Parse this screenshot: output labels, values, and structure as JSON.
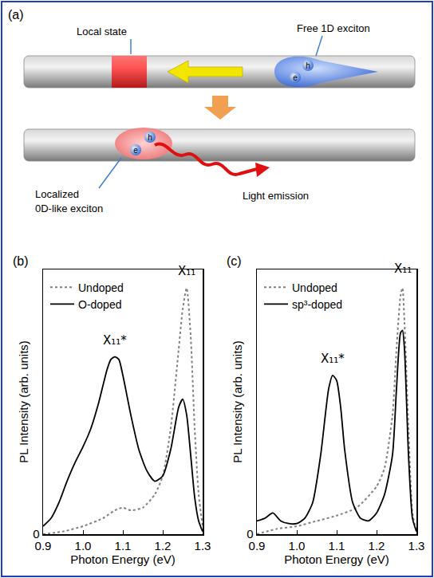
{
  "diagram": {
    "panel": "(a)",
    "labels": {
      "local_state": "Local state",
      "free_exciton": "Free 1D exciton",
      "localized": "Localized",
      "localized_exciton": "0D-like exciton",
      "light_emission": "Light emission",
      "electron": "e",
      "hole": "h"
    }
  },
  "chart_data": [
    {
      "type": "line",
      "panel": "(b)",
      "xlabel": "Photon Energy (eV)",
      "ylabel": "PL Intensity (arb. units)",
      "xlim": [
        0.9,
        1.3
      ],
      "xticks": [
        0.9,
        {
          "value": 1,
          "label": "1.0"
        },
        1.1,
        1.2,
        1.3
      ],
      "ylim": [
        0,
        1
      ],
      "yticks": [
        0
      ],
      "grid": false,
      "legend": "upper left",
      "series": [
        {
          "name": "Undoped",
          "color": "#808080",
          "line_style": "dotted",
          "x": [
            0.9,
            0.95,
            1.0,
            1.05,
            1.08,
            1.1,
            1.12,
            1.15,
            1.18,
            1.2,
            1.22,
            1.24,
            1.25,
            1.26,
            1.27,
            1.28,
            1.29,
            1.3
          ],
          "values": [
            0.0,
            0.01,
            0.03,
            0.06,
            0.09,
            0.1,
            0.09,
            0.1,
            0.15,
            0.22,
            0.4,
            0.7,
            0.85,
            0.93,
            0.75,
            0.4,
            0.15,
            0.03
          ]
        },
        {
          "name": "O-doped",
          "color": "#000000",
          "line_style": "solid",
          "x": [
            0.9,
            0.92,
            0.94,
            0.96,
            0.98,
            1.0,
            1.02,
            1.04,
            1.06,
            1.07,
            1.08,
            1.09,
            1.1,
            1.12,
            1.14,
            1.16,
            1.18,
            1.2,
            1.22,
            1.24,
            1.25,
            1.26,
            1.27,
            1.28,
            1.29,
            1.3
          ],
          "values": [
            0.03,
            0.06,
            0.12,
            0.2,
            0.27,
            0.33,
            0.4,
            0.5,
            0.62,
            0.66,
            0.67,
            0.66,
            0.6,
            0.45,
            0.32,
            0.24,
            0.2,
            0.22,
            0.32,
            0.48,
            0.51,
            0.45,
            0.3,
            0.14,
            0.05,
            0.01
          ]
        }
      ],
      "annotations": [
        {
          "text": "X₁₁*",
          "x": 1.08,
          "y": 0.7
        },
        {
          "text": "X₁₁",
          "x": 1.26,
          "y": 0.96
        }
      ]
    },
    {
      "type": "line",
      "panel": "(c)",
      "xlabel": "Photon Energy (eV)",
      "ylabel": "PL Intensity (arb. units)",
      "xlim": [
        0.9,
        1.3
      ],
      "xticks": [
        0.9,
        {
          "value": 1,
          "label": "1.0"
        },
        1.1,
        1.2,
        1.3
      ],
      "ylim": [
        0,
        1
      ],
      "yticks": [
        0
      ],
      "grid": false,
      "legend": "upper left",
      "series": [
        {
          "name": "Undoped",
          "color": "#808080",
          "line_style": "dotted",
          "x": [
            0.9,
            0.95,
            1.0,
            1.05,
            1.1,
            1.15,
            1.2,
            1.22,
            1.24,
            1.25,
            1.26,
            1.265,
            1.27,
            1.28,
            1.29,
            1.3
          ],
          "values": [
            0.0,
            0.02,
            0.03,
            0.05,
            0.07,
            0.1,
            0.18,
            0.25,
            0.45,
            0.7,
            0.9,
            0.93,
            0.8,
            0.4,
            0.08,
            0.01
          ]
        },
        {
          "name": "sp³-doped",
          "color": "#000000",
          "line_style": "solid",
          "x": [
            0.9,
            0.92,
            0.94,
            0.96,
            0.98,
            1.0,
            1.02,
            1.04,
            1.06,
            1.08,
            1.09,
            1.1,
            1.11,
            1.12,
            1.14,
            1.16,
            1.18,
            1.2,
            1.22,
            1.24,
            1.25,
            1.26,
            1.265,
            1.27,
            1.28,
            1.29,
            1.3
          ],
          "values": [
            0.05,
            0.06,
            0.08,
            0.05,
            0.04,
            0.04,
            0.06,
            0.12,
            0.3,
            0.55,
            0.6,
            0.58,
            0.48,
            0.32,
            0.12,
            0.06,
            0.05,
            0.08,
            0.15,
            0.3,
            0.55,
            0.76,
            0.77,
            0.7,
            0.3,
            0.06,
            0.01
          ]
        }
      ],
      "annotations": [
        {
          "text": "X₁₁*",
          "x": 1.09,
          "y": 0.63
        },
        {
          "text": "X₁₁",
          "x": 1.265,
          "y": 0.97
        }
      ]
    }
  ]
}
